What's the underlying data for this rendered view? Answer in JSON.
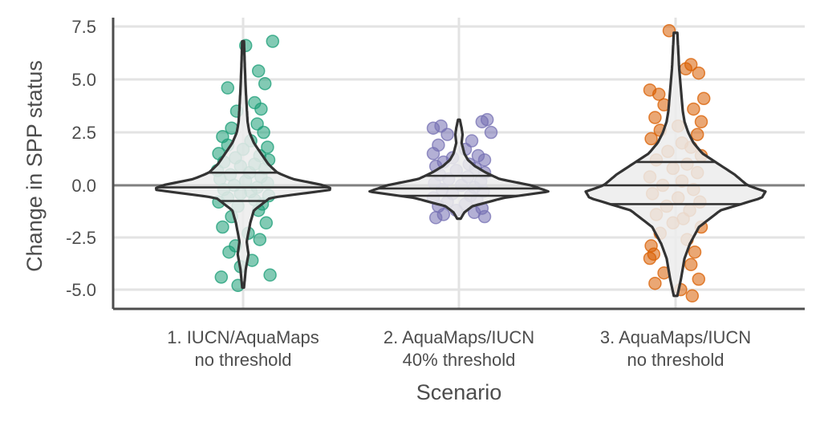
{
  "chart_data": {
    "type": "violin",
    "xlabel": "Scenario",
    "ylabel": "Change in SPP status",
    "ylim": [
      -5.9,
      8.1
    ],
    "y_ticks": [
      {
        "value": 7.5,
        "label": "7.5"
      },
      {
        "value": 5.0,
        "label": "5.0"
      },
      {
        "value": 2.5,
        "label": "2.5"
      },
      {
        "value": 0.0,
        "label": "0.0"
      },
      {
        "value": -2.5,
        "label": "-2.5"
      },
      {
        "value": -5.0,
        "label": "-5.0"
      }
    ],
    "reference_line": 0,
    "grid": true,
    "categories": [
      {
        "line1": "1. IUCN/AquaMaps",
        "line2": "no threshold"
      },
      {
        "line1": "2. AquaMaps/IUCN",
        "line2": "40% threshold"
      },
      {
        "line1": "3. AquaMaps/IUCN",
        "line2": "no threshold"
      }
    ],
    "series": [
      {
        "color": "#1b9e77",
        "range": [
          -4.9,
          6.8
        ],
        "quartiles": [
          -0.75,
          -0.1,
          0.6
        ],
        "profile": [
          [
            -4.9,
            0.01
          ],
          [
            -4.0,
            0.03
          ],
          [
            -3.3,
            0.06
          ],
          [
            -2.7,
            0.04
          ],
          [
            -1.8,
            0.08
          ],
          [
            -1.2,
            0.12
          ],
          [
            -0.6,
            0.3
          ],
          [
            -0.2,
            1.0
          ],
          [
            0.0,
            0.9
          ],
          [
            0.3,
            0.55
          ],
          [
            0.6,
            0.38
          ],
          [
            1.0,
            0.28
          ],
          [
            1.5,
            0.2
          ],
          [
            2.0,
            0.12
          ],
          [
            2.5,
            0.07
          ],
          [
            3.0,
            0.05
          ],
          [
            3.7,
            0.04
          ],
          [
            4.5,
            0.03
          ],
          [
            5.5,
            0.02
          ],
          [
            6.8,
            0.01
          ]
        ],
        "points": [
          [
            0.02,
            6.6
          ],
          [
            0.23,
            6.8
          ],
          [
            0.12,
            5.4
          ],
          [
            -0.12,
            4.6
          ],
          [
            0.17,
            4.8
          ],
          [
            0.09,
            3.9
          ],
          [
            0.14,
            3.6
          ],
          [
            -0.05,
            3.5
          ],
          [
            0.11,
            2.9
          ],
          [
            -0.09,
            2.7
          ],
          [
            0.16,
            2.5
          ],
          [
            -0.16,
            2.3
          ],
          [
            0.06,
            2.1
          ],
          [
            -0.12,
            1.9
          ],
          [
            0.19,
            1.8
          ],
          [
            0.0,
            1.7
          ],
          [
            -0.19,
            1.5
          ],
          [
            0.13,
            1.4
          ],
          [
            -0.06,
            1.3
          ],
          [
            0.2,
            1.2
          ],
          [
            -0.15,
            1.1
          ],
          [
            0.09,
            1.0
          ],
          [
            -0.02,
            0.9
          ],
          [
            0.17,
            0.8
          ],
          [
            -0.2,
            0.7
          ],
          [
            0.05,
            0.6
          ],
          [
            -0.1,
            0.5
          ],
          [
            0.14,
            0.4
          ],
          [
            -0.18,
            0.3
          ],
          [
            0.02,
            0.2
          ],
          [
            0.19,
            0.1
          ],
          [
            -0.07,
            0.0
          ],
          [
            0.11,
            -0.1
          ],
          [
            -0.15,
            -0.2
          ],
          [
            0.06,
            -0.3
          ],
          [
            -0.02,
            -0.4
          ],
          [
            0.2,
            -0.5
          ],
          [
            -0.12,
            -0.6
          ],
          [
            0.09,
            -0.7
          ],
          [
            -0.19,
            -0.8
          ],
          [
            0.15,
            -0.9
          ],
          [
            -0.04,
            -1.0
          ],
          [
            0.12,
            -1.2
          ],
          [
            -0.09,
            -1.5
          ],
          [
            0.18,
            -1.8
          ],
          [
            -0.16,
            -2.0
          ],
          [
            0.04,
            -2.3
          ],
          [
            0.13,
            -2.6
          ],
          [
            -0.06,
            -2.9
          ],
          [
            -0.11,
            -3.2
          ],
          [
            0.07,
            -3.6
          ],
          [
            -0.02,
            -3.9
          ],
          [
            0.21,
            -4.3
          ],
          [
            -0.17,
            -4.4
          ],
          [
            -0.04,
            -4.8
          ]
        ]
      },
      {
        "color": "#7570b3",
        "range": [
          -1.6,
          3.1
        ],
        "quartiles": [
          -0.5,
          -0.15,
          0.45
        ],
        "profile": [
          [
            -1.6,
            0.02
          ],
          [
            -1.3,
            0.06
          ],
          [
            -1.0,
            0.15
          ],
          [
            -0.6,
            0.5
          ],
          [
            -0.3,
            1.0
          ],
          [
            0.0,
            0.8
          ],
          [
            0.3,
            0.45
          ],
          [
            0.6,
            0.3
          ],
          [
            0.9,
            0.18
          ],
          [
            1.2,
            0.1
          ],
          [
            1.5,
            0.06
          ],
          [
            2.0,
            0.03
          ],
          [
            2.4,
            0.04
          ],
          [
            2.7,
            0.03
          ],
          [
            3.1,
            0.01
          ]
        ],
        "points": [
          [
            -0.2,
            2.7
          ],
          [
            -0.14,
            2.8
          ],
          [
            0.18,
            3.0
          ],
          [
            0.22,
            3.1
          ],
          [
            0.25,
            2.5
          ],
          [
            -0.09,
            2.4
          ],
          [
            0.1,
            2.1
          ],
          [
            -0.16,
            1.9
          ],
          [
            0.05,
            1.7
          ],
          [
            -0.2,
            1.5
          ],
          [
            0.15,
            1.4
          ],
          [
            -0.05,
            1.3
          ],
          [
            0.2,
            1.2
          ],
          [
            -0.12,
            1.1
          ],
          [
            0.08,
            1.0
          ],
          [
            -0.18,
            0.9
          ],
          [
            0.13,
            0.8
          ],
          [
            -0.02,
            0.7
          ],
          [
            0.2,
            0.6
          ],
          [
            -0.15,
            0.5
          ],
          [
            0.07,
            0.4
          ],
          [
            -0.08,
            0.3
          ],
          [
            0.17,
            0.2
          ],
          [
            -0.19,
            0.1
          ],
          [
            0.02,
            0.0
          ],
          [
            0.12,
            -0.1
          ],
          [
            -0.13,
            -0.2
          ],
          [
            0.19,
            -0.3
          ],
          [
            -0.05,
            -0.4
          ],
          [
            0.09,
            -0.5
          ],
          [
            -0.2,
            -0.6
          ],
          [
            0.14,
            -0.7
          ],
          [
            -0.09,
            -0.8
          ],
          [
            0.05,
            -0.9
          ],
          [
            -0.16,
            -1.0
          ],
          [
            0.18,
            -1.1
          ],
          [
            -0.02,
            -1.2
          ],
          [
            0.12,
            -1.3
          ],
          [
            -0.12,
            -1.4
          ],
          [
            0.2,
            -1.5
          ],
          [
            -0.18,
            -1.55
          ]
        ]
      },
      {
        "color": "#d95f02",
        "range": [
          -5.3,
          7.2
        ],
        "quartiles": [
          -0.9,
          0.0,
          1.1
        ],
        "profile": [
          [
            -5.3,
            0.01
          ],
          [
            -4.5,
            0.03
          ],
          [
            -3.5,
            0.05
          ],
          [
            -2.8,
            0.08
          ],
          [
            -2.0,
            0.13
          ],
          [
            -1.2,
            0.25
          ],
          [
            -0.6,
            0.48
          ],
          [
            -0.3,
            0.5
          ],
          [
            0.0,
            0.4
          ],
          [
            0.5,
            0.33
          ],
          [
            1.0,
            0.24
          ],
          [
            1.5,
            0.15
          ],
          [
            2.0,
            0.1
          ],
          [
            2.5,
            0.07
          ],
          [
            3.0,
            0.05
          ],
          [
            3.5,
            0.04
          ],
          [
            4.5,
            0.03
          ],
          [
            5.5,
            0.02
          ],
          [
            7.2,
            0.01
          ]
        ],
        "points": [
          [
            -0.05,
            7.3
          ],
          [
            0.12,
            5.7
          ],
          [
            0.08,
            5.5
          ],
          [
            0.18,
            5.3
          ],
          [
            -0.2,
            4.5
          ],
          [
            -0.13,
            4.3
          ],
          [
            0.22,
            4.1
          ],
          [
            -0.09,
            3.8
          ],
          [
            0.14,
            3.6
          ],
          [
            -0.16,
            3.2
          ],
          [
            0.2,
            3.0
          ],
          [
            0.02,
            2.8
          ],
          [
            -0.12,
            2.6
          ],
          [
            0.17,
            2.4
          ],
          [
            -0.19,
            2.2
          ],
          [
            0.05,
            2.0
          ],
          [
            0.12,
            1.8
          ],
          [
            -0.06,
            1.6
          ],
          [
            0.2,
            1.4
          ],
          [
            -0.15,
            1.2
          ],
          [
            0.09,
            1.0
          ],
          [
            -0.02,
            0.8
          ],
          [
            0.17,
            0.6
          ],
          [
            -0.2,
            0.4
          ],
          [
            0.05,
            0.2
          ],
          [
            -0.1,
            0.0
          ],
          [
            0.14,
            -0.2
          ],
          [
            -0.18,
            -0.4
          ],
          [
            0.02,
            -0.6
          ],
          [
            0.19,
            -0.8
          ],
          [
            -0.07,
            -1.0
          ],
          [
            0.11,
            -1.2
          ],
          [
            -0.15,
            -1.4
          ],
          [
            0.06,
            -1.6
          ],
          [
            -0.02,
            -1.8
          ],
          [
            0.2,
            -2.0
          ],
          [
            -0.12,
            -2.3
          ],
          [
            0.09,
            -2.6
          ],
          [
            -0.19,
            -2.9
          ],
          [
            0.15,
            -3.2
          ],
          [
            -0.2,
            -3.5
          ],
          [
            -0.17,
            -3.3
          ],
          [
            0.12,
            -3.8
          ],
          [
            -0.09,
            -4.2
          ],
          [
            0.18,
            -4.5
          ],
          [
            -0.16,
            -4.7
          ],
          [
            0.04,
            -5.0
          ],
          [
            0.13,
            -5.3
          ]
        ]
      }
    ]
  }
}
